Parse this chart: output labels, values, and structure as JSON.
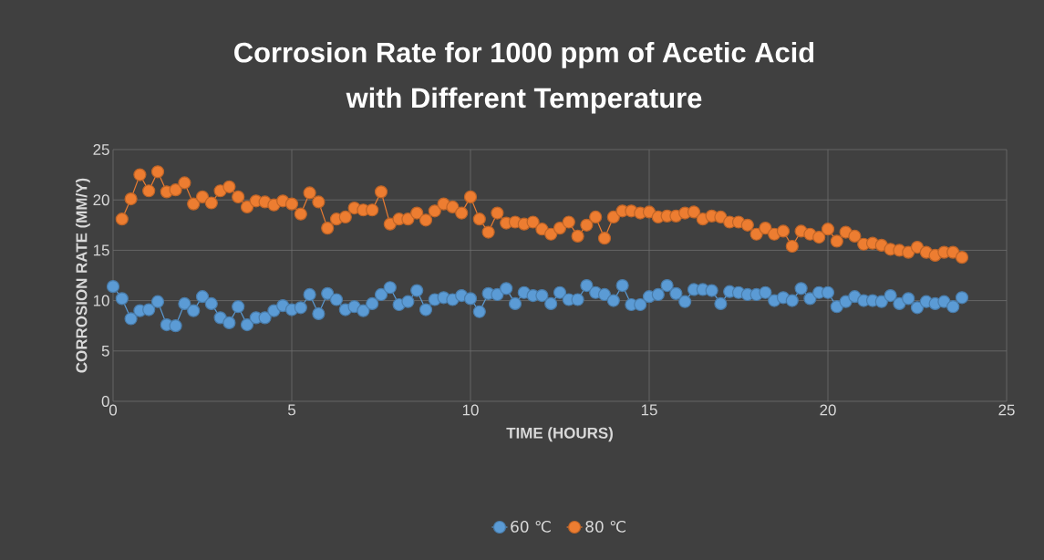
{
  "chart_data": {
    "type": "line",
    "title": "Corrosion Rate for 1000  ppm of Acetic Acid\nwith Different Temperature",
    "xlabel": "TIME (HOURS)",
    "ylabel": "CORROSION RATE (MM/Y)",
    "xlim": [
      0,
      25
    ],
    "xticks": [
      0,
      5,
      10,
      15,
      20,
      25
    ],
    "ylim": [
      0,
      25
    ],
    "yticks": [
      0,
      5,
      10,
      15,
      20,
      25
    ],
    "grid": true,
    "legend": "bottom",
    "marker": "circle",
    "line_style": "solid",
    "series": [
      {
        "name": "60 ℃",
        "color": "#5b9bd5",
        "x": [
          0,
          0.25,
          0.5,
          0.75,
          1,
          1.25,
          1.5,
          1.75,
          2,
          2.25,
          2.5,
          2.75,
          3,
          3.25,
          3.5,
          3.75,
          4,
          4.25,
          4.5,
          4.75,
          5,
          5.25,
          5.5,
          5.75,
          6,
          6.25,
          6.5,
          6.75,
          7,
          7.25,
          7.5,
          7.75,
          8,
          8.25,
          8.5,
          8.75,
          9,
          9.25,
          9.5,
          9.75,
          10,
          10.25,
          10.5,
          10.75,
          11,
          11.25,
          11.5,
          11.75,
          12,
          12.25,
          12.5,
          12.75,
          13,
          13.25,
          13.5,
          13.75,
          14,
          14.25,
          14.5,
          14.75,
          15,
          15.25,
          15.5,
          15.75,
          16,
          16.25,
          16.5,
          16.75,
          17,
          17.25,
          17.5,
          17.75,
          18,
          18.25,
          18.5,
          18.75,
          19,
          19.25,
          19.5,
          19.75,
          20,
          20.25,
          20.5,
          20.75,
          21,
          21.25,
          21.5,
          21.75,
          22,
          22.25,
          22.5,
          22.75,
          23,
          23.25,
          23.5,
          23.75
        ],
        "values": [
          11.4,
          10.2,
          8.2,
          9.0,
          9.1,
          9.9,
          7.6,
          7.5,
          9.7,
          9.0,
          10.4,
          9.7,
          8.3,
          7.8,
          9.4,
          7.6,
          8.3,
          8.3,
          9.0,
          9.5,
          9.1,
          9.3,
          10.6,
          8.7,
          10.7,
          10.1,
          9.1,
          9.4,
          9.0,
          9.7,
          10.6,
          11.3,
          9.6,
          9.9,
          11.0,
          9.1,
          10.1,
          10.3,
          10.1,
          10.5,
          10.2,
          8.9,
          10.7,
          10.6,
          11.2,
          9.7,
          10.8,
          10.5,
          10.5,
          9.7,
          10.8,
          10.1,
          10.1,
          11.5,
          10.8,
          10.6,
          10.0,
          11.5,
          9.6,
          9.6,
          10.4,
          10.6,
          11.5,
          10.7,
          9.9,
          11.1,
          11.1,
          11.0,
          9.7,
          10.9,
          10.8,
          10.6,
          10.6,
          10.8,
          10.0,
          10.3,
          10.0,
          11.2,
          10.2,
          10.8,
          10.8,
          9.4,
          9.9,
          10.4,
          10.0,
          10.0,
          9.9,
          10.5,
          9.7,
          10.2,
          9.3,
          9.9,
          9.7,
          9.9,
          9.4,
          10.3
        ]
      },
      {
        "name": "80 ℃",
        "color": "#ed7d31",
        "x": [
          0.25,
          0.5,
          0.75,
          1,
          1.25,
          1.5,
          1.75,
          2,
          2.25,
          2.5,
          2.75,
          3,
          3.25,
          3.5,
          3.75,
          4,
          4.25,
          4.5,
          4.75,
          5,
          5.25,
          5.5,
          5.75,
          6,
          6.25,
          6.5,
          6.75,
          7,
          7.25,
          7.5,
          7.75,
          8,
          8.25,
          8.5,
          8.75,
          9,
          9.25,
          9.5,
          9.75,
          10,
          10.25,
          10.5,
          10.75,
          11,
          11.25,
          11.5,
          11.75,
          12,
          12.25,
          12.5,
          12.75,
          13,
          13.25,
          13.5,
          13.75,
          14,
          14.25,
          14.5,
          14.75,
          15,
          15.25,
          15.5,
          15.75,
          16,
          16.25,
          16.5,
          16.75,
          17,
          17.25,
          17.5,
          17.75,
          18,
          18.25,
          18.5,
          18.75,
          19,
          19.25,
          19.5,
          19.75,
          20,
          20.25,
          20.5,
          20.75,
          21,
          21.25,
          21.5,
          21.75,
          22,
          22.25,
          22.5,
          22.75,
          23,
          23.25,
          23.5,
          23.75
        ],
        "values": [
          18.1,
          20.1,
          22.5,
          20.9,
          22.8,
          20.8,
          21.0,
          21.7,
          19.6,
          20.3,
          19.7,
          20.9,
          21.3,
          20.3,
          19.3,
          19.9,
          19.8,
          19.5,
          19.9,
          19.6,
          18.6,
          20.7,
          19.8,
          17.2,
          18.1,
          18.3,
          19.2,
          19.0,
          19.0,
          20.8,
          17.6,
          18.1,
          18.1,
          18.7,
          18.0,
          18.9,
          19.6,
          19.3,
          18.7,
          20.3,
          18.1,
          16.8,
          18.7,
          17.7,
          17.8,
          17.6,
          17.8,
          17.1,
          16.6,
          17.2,
          17.8,
          16.4,
          17.5,
          18.3,
          16.2,
          18.3,
          18.9,
          18.9,
          18.7,
          18.8,
          18.3,
          18.4,
          18.4,
          18.7,
          18.8,
          18.1,
          18.4,
          18.3,
          17.8,
          17.8,
          17.5,
          16.6,
          17.2,
          16.6,
          16.9,
          15.4,
          16.9,
          16.6,
          16.3,
          17.1,
          15.9,
          16.8,
          16.4,
          15.6,
          15.7,
          15.5,
          15.1,
          15.0,
          14.8,
          15.3,
          14.8,
          14.5,
          14.8,
          14.8,
          14.3
        ]
      }
    ]
  }
}
